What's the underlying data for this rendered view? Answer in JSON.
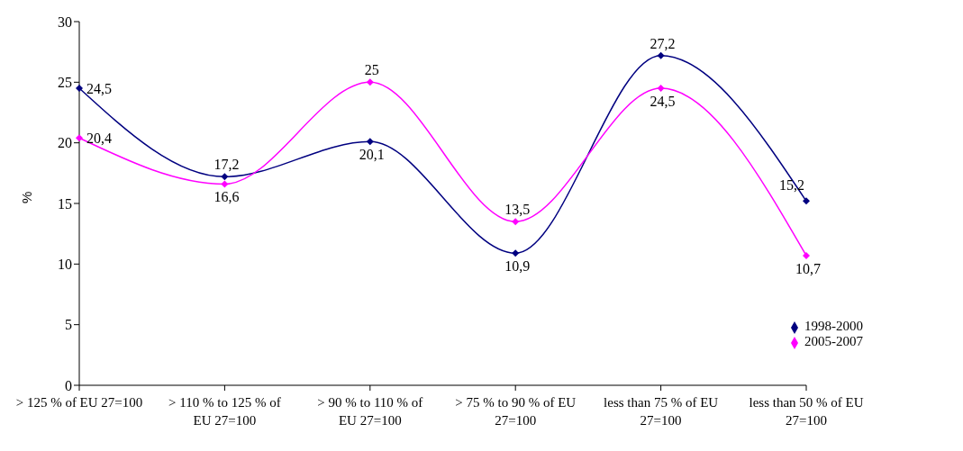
{
  "chart_data": {
    "type": "line",
    "ylabel": "%",
    "categories": [
      "> 125 % of EU 27=100",
      "> 110 % to 125 % of EU 27=100",
      "> 90 % to 110 % of EU 27=100",
      "> 75 % to 90 % of EU 27=100",
      "less than 75 % of EU 27=100",
      "less than 50 % of EU 27=100"
    ],
    "series": [
      {
        "name": "1998-2000",
        "color": "#000080",
        "values": [
          24.5,
          17.2,
          20.1,
          10.9,
          27.2,
          15.2
        ],
        "value_labels": [
          "24,5",
          "17,2",
          "20,1",
          "10,9",
          "27,2",
          "15,2"
        ]
      },
      {
        "name": "2005-2007",
        "color": "#ff00ff",
        "values": [
          20.4,
          16.6,
          25,
          13.5,
          24.5,
          10.7
        ],
        "value_labels": [
          "20,4",
          "16,6",
          "25",
          "13,5",
          "24,5",
          "10,7"
        ]
      }
    ],
    "ylim": [
      0,
      30
    ],
    "yticks": [
      0,
      5,
      10,
      15,
      20,
      25,
      30
    ],
    "grid": false,
    "legend": "bottom right",
    "marker": "diamond",
    "line_style": "solid"
  }
}
